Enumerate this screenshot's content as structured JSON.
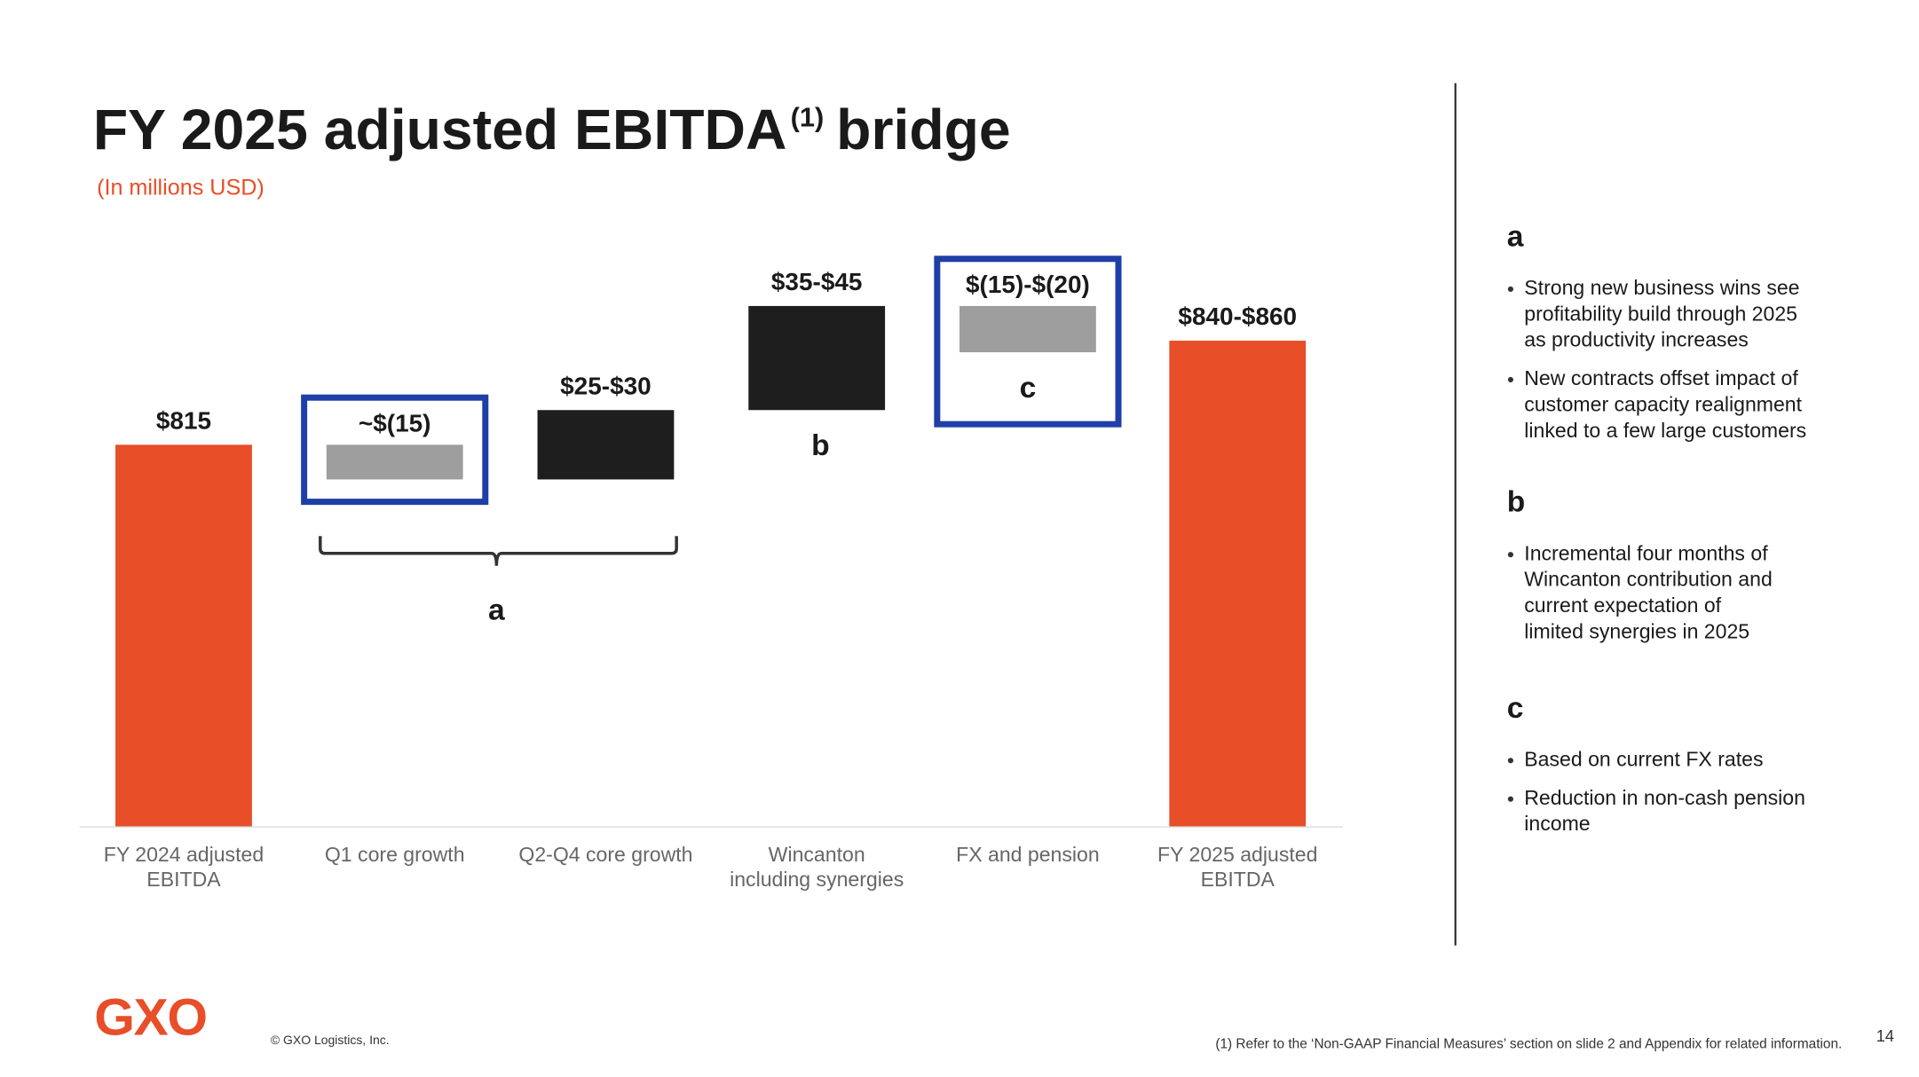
{
  "chart_data": {
    "type": "waterfall",
    "title": "FY 2025 adjusted EBITDA",
    "title_superscript": "(1)",
    "title_suffix": "bridge",
    "subtitle": "(In millions USD)",
    "categories": [
      [
        "FY 2024 adjusted",
        "EBITDA"
      ],
      [
        "Q1 core growth"
      ],
      [
        "Q2-Q4 core growth"
      ],
      [
        "Wincanton",
        "including synergies"
      ],
      [
        "FX and pension"
      ],
      [
        "FY 2025 adjusted",
        "EBITDA"
      ]
    ],
    "ranges": [
      [
        815,
        815
      ],
      [
        -15,
        -15
      ],
      [
        25,
        30
      ],
      [
        35,
        45
      ],
      [
        -15,
        -20
      ],
      [
        840,
        860
      ]
    ],
    "value_labels": [
      "$815",
      "~$(15)",
      "$25-$30",
      "$35-$45",
      "$(15)-$(20)",
      "$840-$860"
    ],
    "kinds": [
      "total",
      "delta",
      "delta",
      "delta",
      "delta",
      "total"
    ],
    "colors": {
      "total": "#e84e27",
      "increase": "#1e1e1e",
      "decrease": "#9e9e9e",
      "highlight": "#1f3ea8"
    },
    "annotations": [
      "a",
      "b",
      "c"
    ],
    "ylim": [
      650,
      900
    ]
  },
  "side_panel": [
    {
      "heading": "a",
      "bullets": [
        [
          "Strong new business wins see",
          "profitability build through 2025",
          "as productivity increases"
        ],
        [
          "New contracts offset impact of",
          "customer capacity realignment",
          "linked to a few large customers"
        ]
      ]
    },
    {
      "heading": "b",
      "bullets": [
        [
          "Incremental four months of",
          "Wincanton contribution and",
          "current expectation of",
          "limited synergies in 2025"
        ]
      ]
    },
    {
      "heading": "c",
      "bullets": [
        [
          "Based on current FX rates"
        ],
        [
          "Reduction in non-cash pension",
          "income"
        ]
      ]
    }
  ],
  "footer": {
    "logo": "GXO",
    "copyright": "© GXO Logistics, Inc.",
    "footnote": "(1) Refer to the ‘Non-GAAP Financial Measures’ section on slide 2 and Appendix for related information.",
    "page": "14"
  }
}
